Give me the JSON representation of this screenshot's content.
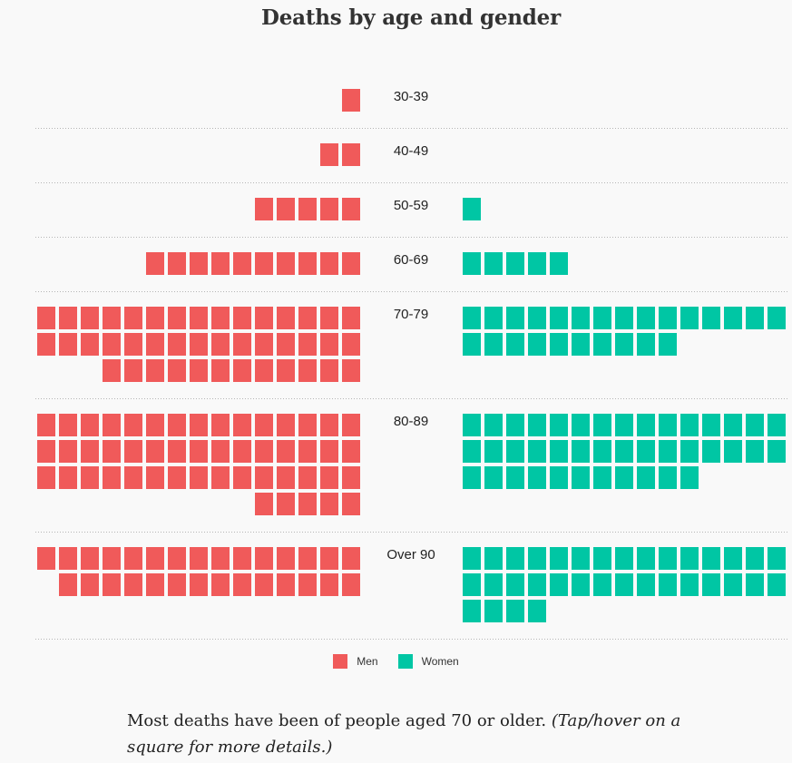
{
  "colors": {
    "men": "#f05a5a",
    "women": "#00c6a4"
  },
  "chart_data": {
    "type": "waffle",
    "title": "Deaths by age and gender",
    "squares_per_row": 15,
    "categories": [
      "30-39",
      "40-49",
      "50-59",
      "60-69",
      "70-79",
      "80-89",
      "Over 90"
    ],
    "series": [
      {
        "name": "Men",
        "values": [
          1,
          2,
          5,
          10,
          42,
          50,
          29
        ]
      },
      {
        "name": "Women",
        "values": [
          0,
          0,
          1,
          5,
          25,
          41,
          34
        ]
      }
    ],
    "legend": {
      "placement": "bottom-center"
    }
  },
  "caption": {
    "main": "Most deaths have been of people aged 70 or older.",
    "note": "(Tap/hover on a square for more details.)"
  }
}
